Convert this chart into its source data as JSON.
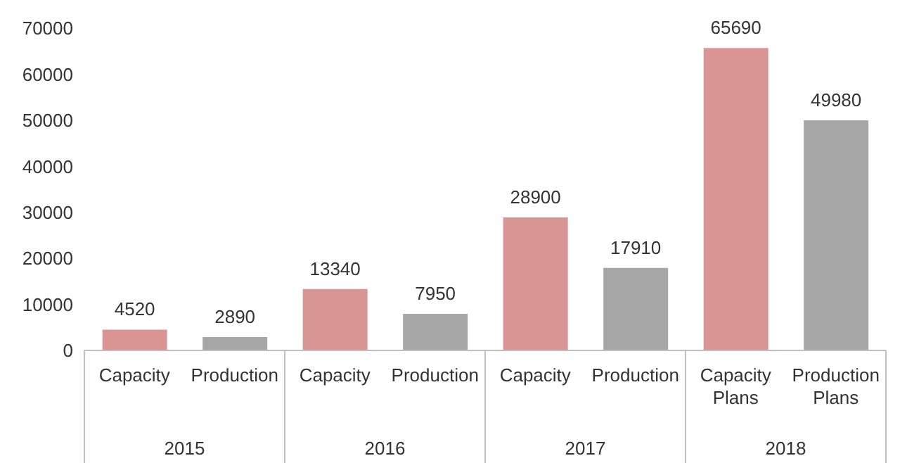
{
  "chart_data": {
    "type": "bar",
    "categories": [
      "Capacity",
      "Production",
      "Capacity",
      "Production",
      "Capacity",
      "Production",
      "Capacity Plans",
      "Production Plans"
    ],
    "values": [
      4520,
      2890,
      13340,
      7950,
      28900,
      17910,
      65690,
      49980
    ],
    "colors": [
      "#d99594",
      "#a6a6a6",
      "#d99594",
      "#a6a6a6",
      "#d99594",
      "#a6a6a6",
      "#d99594",
      "#a6a6a6"
    ],
    "ylim": [
      0,
      70000
    ],
    "yticks": [
      0,
      10000,
      20000,
      30000,
      40000,
      50000,
      60000,
      70000
    ],
    "grid": false,
    "legend": false,
    "data_labels": true,
    "annotations": [
      "2015",
      "2016",
      "2017",
      "2018"
    ]
  }
}
